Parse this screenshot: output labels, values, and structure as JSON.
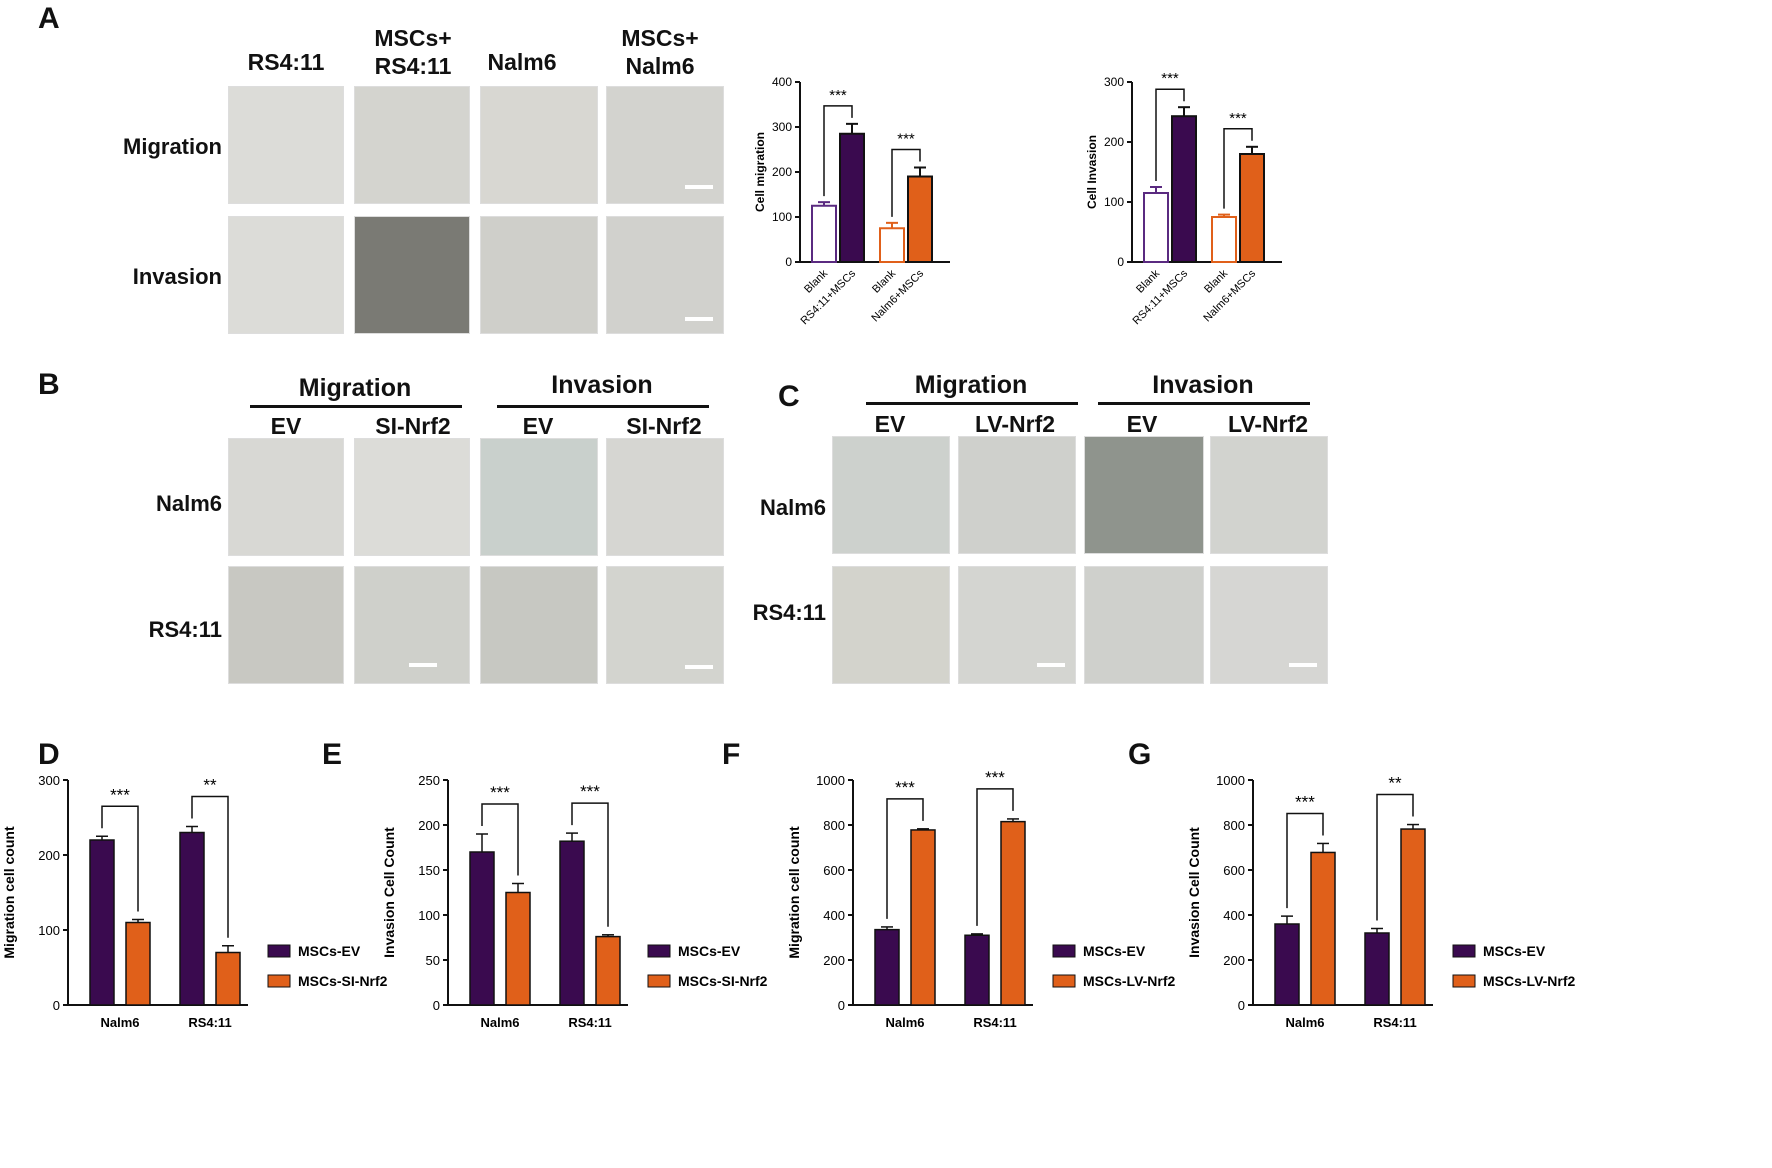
{
  "panelA": {
    "label": "A",
    "columns": [
      "RS4:11",
      "MSCs+\nRS4:11",
      "Nalm6",
      "MSCs+\nNalm6"
    ],
    "rows": [
      "Migration",
      "Invasion"
    ]
  },
  "panelB": {
    "label": "B",
    "groups": [
      "Migration",
      "Invasion"
    ],
    "columns": [
      "EV",
      "SI-Nrf2",
      "EV",
      "SI-Nrf2"
    ],
    "rows": [
      "Nalm6",
      "RS4:11"
    ]
  },
  "panelC": {
    "label": "C",
    "groups": [
      "Migration",
      "Invasion"
    ],
    "columns": [
      "EV",
      "LV-Nrf2",
      "EV",
      "LV-Nrf2"
    ],
    "rows": [
      "Nalm6",
      "RS4:11"
    ]
  },
  "labels": {
    "D": "D",
    "E": "E",
    "F": "F",
    "G": "G"
  },
  "colors": {
    "purple": "#3a0a4f",
    "orange": "#e0601a",
    "purpleOutline": "#5a2a80"
  },
  "chart_data": [
    {
      "id": "A1",
      "type": "bar",
      "title": "",
      "ylabel": "Cell migration",
      "ylim": [
        0,
        400
      ],
      "yticks": [
        0,
        100,
        200,
        300,
        400
      ],
      "categories": [
        "Blank",
        "RS4:11+MSCs",
        "Blank",
        "Nalm6+MSCs"
      ],
      "values": [
        125,
        285,
        75,
        190
      ],
      "errors": [
        8,
        22,
        12,
        20
      ],
      "sig": [
        {
          "label": "***"
        },
        {
          "label": "***"
        }
      ]
    },
    {
      "id": "A2",
      "type": "bar",
      "title": "",
      "ylabel": "Cell Invasion",
      "ylim": [
        0,
        300
      ],
      "yticks": [
        0,
        100,
        200,
        300
      ],
      "categories": [
        "Blank",
        "RS4:11+MSCs",
        "Blank",
        "Nalm6+MSCs"
      ],
      "values": [
        115,
        243,
        75,
        180
      ],
      "errors": [
        10,
        15,
        4,
        12
      ],
      "sig": [
        {
          "label": "***"
        },
        {
          "label": "***"
        }
      ]
    },
    {
      "id": "D",
      "type": "bar",
      "ylabel": "Migration cell count",
      "ylim": [
        0,
        300
      ],
      "yticks": [
        0,
        100,
        200,
        300
      ],
      "categories": [
        "Nalm6",
        "RS4:11"
      ],
      "series": [
        {
          "name": "MSCs-EV",
          "values": [
            220,
            230
          ],
          "errors": [
            5,
            8
          ]
        },
        {
          "name": "MSCs-SI-Nrf2",
          "values": [
            110,
            70
          ],
          "errors": [
            4,
            9
          ]
        }
      ],
      "sig": [
        "***",
        "**"
      ]
    },
    {
      "id": "E",
      "type": "bar",
      "ylabel": "Invasion Cell Count",
      "ylim": [
        0,
        250
      ],
      "yticks": [
        0,
        50,
        100,
        150,
        200,
        250
      ],
      "categories": [
        "Nalm6",
        "RS4:11"
      ],
      "series": [
        {
          "name": "MSCs-EV",
          "values": [
            170,
            182
          ],
          "errors": [
            20,
            9
          ]
        },
        {
          "name": "MSCs-SI-Nrf2",
          "values": [
            125,
            76
          ],
          "errors": [
            10,
            2
          ]
        }
      ],
      "sig": [
        "***",
        "***"
      ]
    },
    {
      "id": "F",
      "type": "bar",
      "ylabel": "Migration cell count",
      "ylim": [
        0,
        1000
      ],
      "yticks": [
        0,
        200,
        400,
        600,
        800,
        1000
      ],
      "categories": [
        "Nalm6",
        "RS4:11"
      ],
      "series": [
        {
          "name": "MSCs-EV",
          "values": [
            335,
            310
          ],
          "errors": [
            12,
            6
          ]
        },
        {
          "name": "MSCs-LV-Nrf2",
          "values": [
            778,
            815
          ],
          "errors": [
            5,
            12
          ]
        }
      ],
      "sig": [
        "***",
        "***"
      ]
    },
    {
      "id": "G",
      "type": "bar",
      "ylabel": "Invasion Cell Count",
      "ylim": [
        0,
        1000
      ],
      "yticks": [
        0,
        200,
        400,
        600,
        800,
        1000
      ],
      "categories": [
        "Nalm6",
        "RS4:11"
      ],
      "series": [
        {
          "name": "MSCs-EV",
          "values": [
            360,
            320
          ],
          "errors": [
            35,
            20
          ]
        },
        {
          "name": "MSCs-LV-Nrf2",
          "values": [
            678,
            782
          ],
          "errors": [
            40,
            20
          ]
        }
      ],
      "sig": [
        "***",
        "**"
      ]
    }
  ]
}
